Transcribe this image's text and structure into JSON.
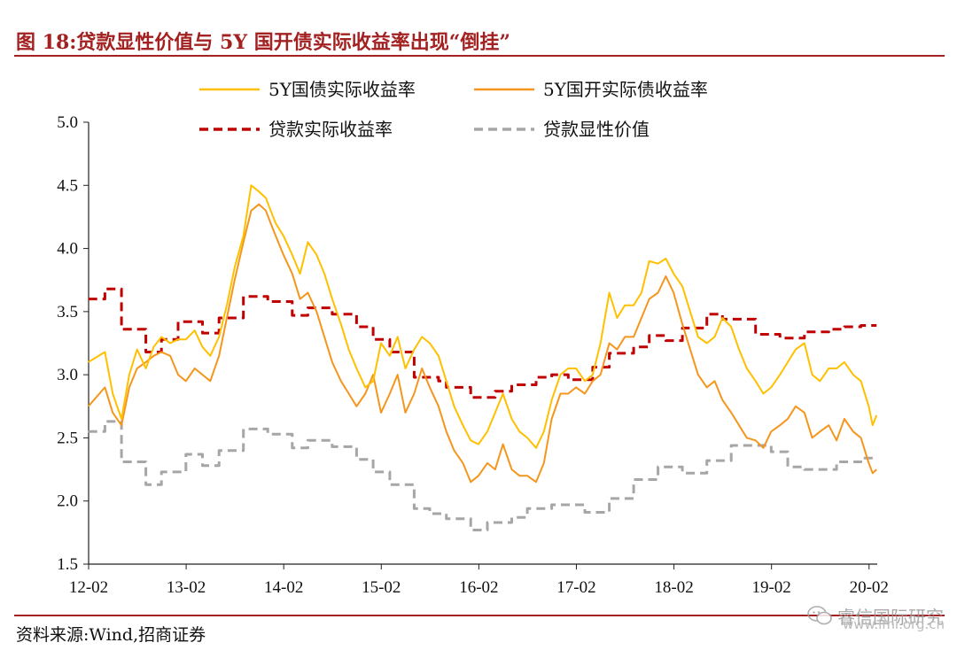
{
  "header": {
    "title": "图 18:贷款显性价值与 5Y 国开债实际收益率出现“倒挂”"
  },
  "footer": {
    "source": "资料来源:Wind,招商证券"
  },
  "watermark": {
    "text": "睿信国际研究",
    "url": "www.imi.org.cn",
    "icon": "wechat-icon"
  },
  "chart_data": {
    "type": "line",
    "title": "",
    "xlabel": "",
    "ylabel": "",
    "ylim": [
      1.5,
      5.0
    ],
    "yticks": [
      1.5,
      2.0,
      2.5,
      3.0,
      3.5,
      4.0,
      4.5,
      5.0
    ],
    "ytick_labels": [
      "1.5",
      "2.0",
      "2.5",
      "3.0",
      "3.5",
      "4.0",
      "4.5",
      "5.0"
    ],
    "xlim": [
      2012.083,
      2020.167
    ],
    "xticks": [
      2012.083,
      2013.083,
      2014.083,
      2015.083,
      2016.083,
      2017.083,
      2018.083,
      2019.083,
      2020.083
    ],
    "xtick_labels": [
      "12-02",
      "13-02",
      "14-02",
      "15-02",
      "16-02",
      "17-02",
      "18-02",
      "19-02",
      "20-02"
    ],
    "grid": false,
    "legend": "top-center",
    "series": [
      {
        "name": "5Y国债实际收益率",
        "color": "#ffc000",
        "style": "solid",
        "x": [
          2012.08,
          2012.25,
          2012.33,
          2012.42,
          2012.5,
          2012.58,
          2012.67,
          2012.75,
          2012.83,
          2012.92,
          2013.0,
          2013.08,
          2013.17,
          2013.25,
          2013.33,
          2013.42,
          2013.5,
          2013.58,
          2013.67,
          2013.75,
          2013.83,
          2013.9,
          2013.95,
          2014.0,
          2014.08,
          2014.17,
          2014.25,
          2014.33,
          2014.42,
          2014.5,
          2014.58,
          2014.67,
          2014.75,
          2014.83,
          2014.92,
          2015.0,
          2015.08,
          2015.17,
          2015.25,
          2015.33,
          2015.42,
          2015.5,
          2015.58,
          2015.67,
          2015.75,
          2015.83,
          2015.92,
          2016.0,
          2016.08,
          2016.17,
          2016.25,
          2016.33,
          2016.42,
          2016.5,
          2016.58,
          2016.67,
          2016.75,
          2016.83,
          2016.92,
          2017.0,
          2017.08,
          2017.17,
          2017.25,
          2017.33,
          2017.42,
          2017.5,
          2017.58,
          2017.67,
          2017.75,
          2017.83,
          2017.92,
          2018.0,
          2018.08,
          2018.17,
          2018.25,
          2018.33,
          2018.42,
          2018.5,
          2018.58,
          2018.67,
          2018.75,
          2018.83,
          2018.92,
          2019.0,
          2019.08,
          2019.17,
          2019.25,
          2019.33,
          2019.42,
          2019.5,
          2019.58,
          2019.67,
          2019.75,
          2019.83,
          2019.92,
          2020.0,
          2020.08,
          2020.12,
          2020.16
        ],
        "y": [
          3.1,
          3.18,
          2.85,
          2.65,
          3.0,
          3.2,
          3.05,
          3.22,
          3.3,
          3.25,
          3.28,
          3.28,
          3.35,
          3.22,
          3.15,
          3.3,
          3.55,
          3.85,
          4.1,
          4.5,
          4.45,
          4.4,
          4.3,
          4.2,
          4.1,
          3.95,
          3.8,
          4.05,
          3.95,
          3.8,
          3.6,
          3.4,
          3.2,
          3.05,
          2.9,
          2.95,
          3.25,
          3.15,
          3.3,
          3.05,
          3.2,
          3.3,
          3.25,
          3.15,
          2.95,
          2.75,
          2.6,
          2.48,
          2.45,
          2.55,
          2.7,
          2.85,
          2.65,
          2.55,
          2.5,
          2.42,
          2.55,
          2.8,
          3.0,
          3.05,
          3.05,
          2.95,
          3.0,
          3.25,
          3.65,
          3.45,
          3.55,
          3.55,
          3.65,
          3.9,
          3.88,
          3.92,
          3.8,
          3.7,
          3.5,
          3.3,
          3.25,
          3.3,
          3.45,
          3.38,
          3.2,
          3.05,
          2.95,
          2.85,
          2.9,
          3.0,
          3.1,
          3.2,
          3.25,
          3.0,
          2.95,
          3.05,
          3.05,
          3.1,
          3.0,
          2.95,
          2.75,
          2.6,
          2.68
        ]
      },
      {
        "name": "5Y国开实际债收益率",
        "color": "#f5961c",
        "style": "solid",
        "x": [
          2012.08,
          2012.25,
          2012.33,
          2012.42,
          2012.5,
          2012.58,
          2012.67,
          2012.75,
          2012.83,
          2012.92,
          2013.0,
          2013.08,
          2013.17,
          2013.25,
          2013.33,
          2013.42,
          2013.5,
          2013.58,
          2013.67,
          2013.75,
          2013.83,
          2013.9,
          2013.95,
          2014.0,
          2014.08,
          2014.17,
          2014.25,
          2014.33,
          2014.42,
          2014.5,
          2014.58,
          2014.67,
          2014.75,
          2014.83,
          2014.92,
          2015.0,
          2015.08,
          2015.17,
          2015.25,
          2015.33,
          2015.42,
          2015.5,
          2015.58,
          2015.67,
          2015.75,
          2015.83,
          2015.92,
          2016.0,
          2016.08,
          2016.17,
          2016.25,
          2016.33,
          2016.42,
          2016.5,
          2016.58,
          2016.67,
          2016.75,
          2016.83,
          2016.92,
          2017.0,
          2017.08,
          2017.17,
          2017.25,
          2017.33,
          2017.42,
          2017.5,
          2017.58,
          2017.67,
          2017.75,
          2017.83,
          2017.92,
          2018.0,
          2018.08,
          2018.17,
          2018.25,
          2018.33,
          2018.42,
          2018.5,
          2018.58,
          2018.67,
          2018.75,
          2018.83,
          2018.92,
          2019.0,
          2019.08,
          2019.17,
          2019.25,
          2019.33,
          2019.42,
          2019.5,
          2019.58,
          2019.67,
          2019.75,
          2019.83,
          2019.92,
          2020.0,
          2020.08,
          2020.12,
          2020.16
        ],
        "y": [
          2.75,
          2.9,
          2.7,
          2.6,
          2.9,
          3.05,
          3.1,
          3.15,
          3.18,
          3.15,
          3.0,
          2.95,
          3.05,
          3.0,
          2.95,
          3.15,
          3.45,
          3.75,
          4.05,
          4.3,
          4.35,
          4.3,
          4.2,
          4.1,
          3.95,
          3.8,
          3.6,
          3.65,
          3.5,
          3.3,
          3.1,
          2.95,
          2.85,
          2.75,
          2.85,
          3.0,
          2.7,
          2.85,
          3.0,
          2.7,
          2.85,
          3.05,
          2.9,
          2.75,
          2.55,
          2.4,
          2.3,
          2.15,
          2.2,
          2.3,
          2.25,
          2.45,
          2.25,
          2.2,
          2.2,
          2.15,
          2.3,
          2.65,
          2.85,
          2.85,
          2.9,
          2.85,
          2.95,
          3.0,
          3.25,
          3.2,
          3.3,
          3.3,
          3.45,
          3.6,
          3.65,
          3.78,
          3.65,
          3.4,
          3.2,
          3.0,
          2.9,
          2.95,
          2.8,
          2.7,
          2.6,
          2.5,
          2.48,
          2.42,
          2.55,
          2.6,
          2.65,
          2.75,
          2.7,
          2.5,
          2.55,
          2.6,
          2.48,
          2.65,
          2.55,
          2.5,
          2.3,
          2.22,
          2.25
        ]
      },
      {
        "name": "贷款实际收益率",
        "color": "#c00000",
        "style": "dashed",
        "x": [
          2012.08,
          2012.25,
          2012.25,
          2012.42,
          2012.42,
          2012.67,
          2012.67,
          2012.83,
          2012.83,
          2013.0,
          2013.0,
          2013.25,
          2013.25,
          2013.42,
          2013.42,
          2013.67,
          2013.67,
          2013.92,
          2013.92,
          2014.17,
          2014.17,
          2014.33,
          2014.33,
          2014.58,
          2014.58,
          2014.83,
          2014.83,
          2015.0,
          2015.0,
          2015.17,
          2015.17,
          2015.42,
          2015.42,
          2015.67,
          2015.67,
          2015.75,
          2015.75,
          2016.0,
          2016.0,
          2016.25,
          2016.25,
          2016.42,
          2016.42,
          2016.67,
          2016.67,
          2016.83,
          2016.83,
          2017.0,
          2017.0,
          2017.25,
          2017.25,
          2017.42,
          2017.42,
          2017.67,
          2017.67,
          2017.83,
          2017.83,
          2018.0,
          2018.0,
          2018.17,
          2018.17,
          2018.42,
          2018.42,
          2018.58,
          2018.58,
          2018.92,
          2018.92,
          2019.17,
          2019.17,
          2019.42,
          2019.42,
          2019.67,
          2019.67,
          2019.83,
          2019.83,
          2020.0,
          2020.0,
          2020.16
        ],
        "y": [
          3.6,
          3.6,
          3.68,
          3.68,
          3.36,
          3.36,
          3.18,
          3.18,
          3.28,
          3.28,
          3.42,
          3.42,
          3.33,
          3.33,
          3.45,
          3.45,
          3.62,
          3.62,
          3.58,
          3.58,
          3.47,
          3.47,
          3.53,
          3.53,
          3.48,
          3.48,
          3.38,
          3.38,
          3.28,
          3.28,
          3.18,
          3.18,
          2.98,
          2.98,
          2.95,
          2.95,
          2.9,
          2.9,
          2.82,
          2.82,
          2.87,
          2.87,
          2.92,
          2.92,
          2.98,
          2.98,
          3.0,
          3.0,
          2.96,
          2.96,
          3.06,
          3.06,
          3.17,
          3.17,
          3.22,
          3.22,
          3.31,
          3.31,
          3.27,
          3.27,
          3.37,
          3.37,
          3.48,
          3.48,
          3.44,
          3.44,
          3.32,
          3.32,
          3.29,
          3.29,
          3.34,
          3.34,
          3.36,
          3.36,
          3.38,
          3.38,
          3.39,
          3.39
        ]
      },
      {
        "name": "贷款显性价值",
        "color": "#a6a6a6",
        "style": "dashed",
        "x": [
          2012.08,
          2012.25,
          2012.25,
          2012.42,
          2012.42,
          2012.67,
          2012.67,
          2012.83,
          2012.83,
          2013.08,
          2013.08,
          2013.25,
          2013.25,
          2013.42,
          2013.42,
          2013.67,
          2013.67,
          2013.92,
          2013.92,
          2014.17,
          2014.17,
          2014.33,
          2014.33,
          2014.58,
          2014.58,
          2014.83,
          2014.83,
          2015.0,
          2015.0,
          2015.17,
          2015.17,
          2015.42,
          2015.42,
          2015.58,
          2015.58,
          2015.75,
          2015.75,
          2016.0,
          2016.0,
          2016.17,
          2016.17,
          2016.42,
          2016.42,
          2016.58,
          2016.58,
          2016.83,
          2016.83,
          2017.17,
          2017.17,
          2017.42,
          2017.42,
          2017.67,
          2017.67,
          2017.92,
          2017.92,
          2018.17,
          2018.17,
          2018.42,
          2018.42,
          2018.67,
          2018.67,
          2019.08,
          2019.08,
          2019.25,
          2019.25,
          2019.42,
          2019.42,
          2019.75,
          2019.75,
          2020.0,
          2020.0,
          2020.16
        ],
        "y": [
          2.55,
          2.55,
          2.63,
          2.63,
          2.31,
          2.31,
          2.13,
          2.13,
          2.23,
          2.23,
          2.37,
          2.37,
          2.28,
          2.28,
          2.4,
          2.4,
          2.57,
          2.57,
          2.53,
          2.53,
          2.42,
          2.42,
          2.48,
          2.48,
          2.43,
          2.43,
          2.33,
          2.33,
          2.23,
          2.23,
          2.13,
          2.13,
          1.94,
          1.94,
          1.9,
          1.9,
          1.86,
          1.86,
          1.77,
          1.77,
          1.83,
          1.83,
          1.87,
          1.87,
          1.94,
          1.94,
          1.97,
          1.97,
          1.91,
          1.91,
          2.02,
          2.02,
          2.17,
          2.17,
          2.27,
          2.27,
          2.22,
          2.22,
          2.32,
          2.32,
          2.44,
          2.44,
          2.39,
          2.39,
          2.27,
          2.27,
          2.25,
          2.25,
          2.31,
          2.31,
          2.34,
          2.34
        ]
      }
    ]
  }
}
